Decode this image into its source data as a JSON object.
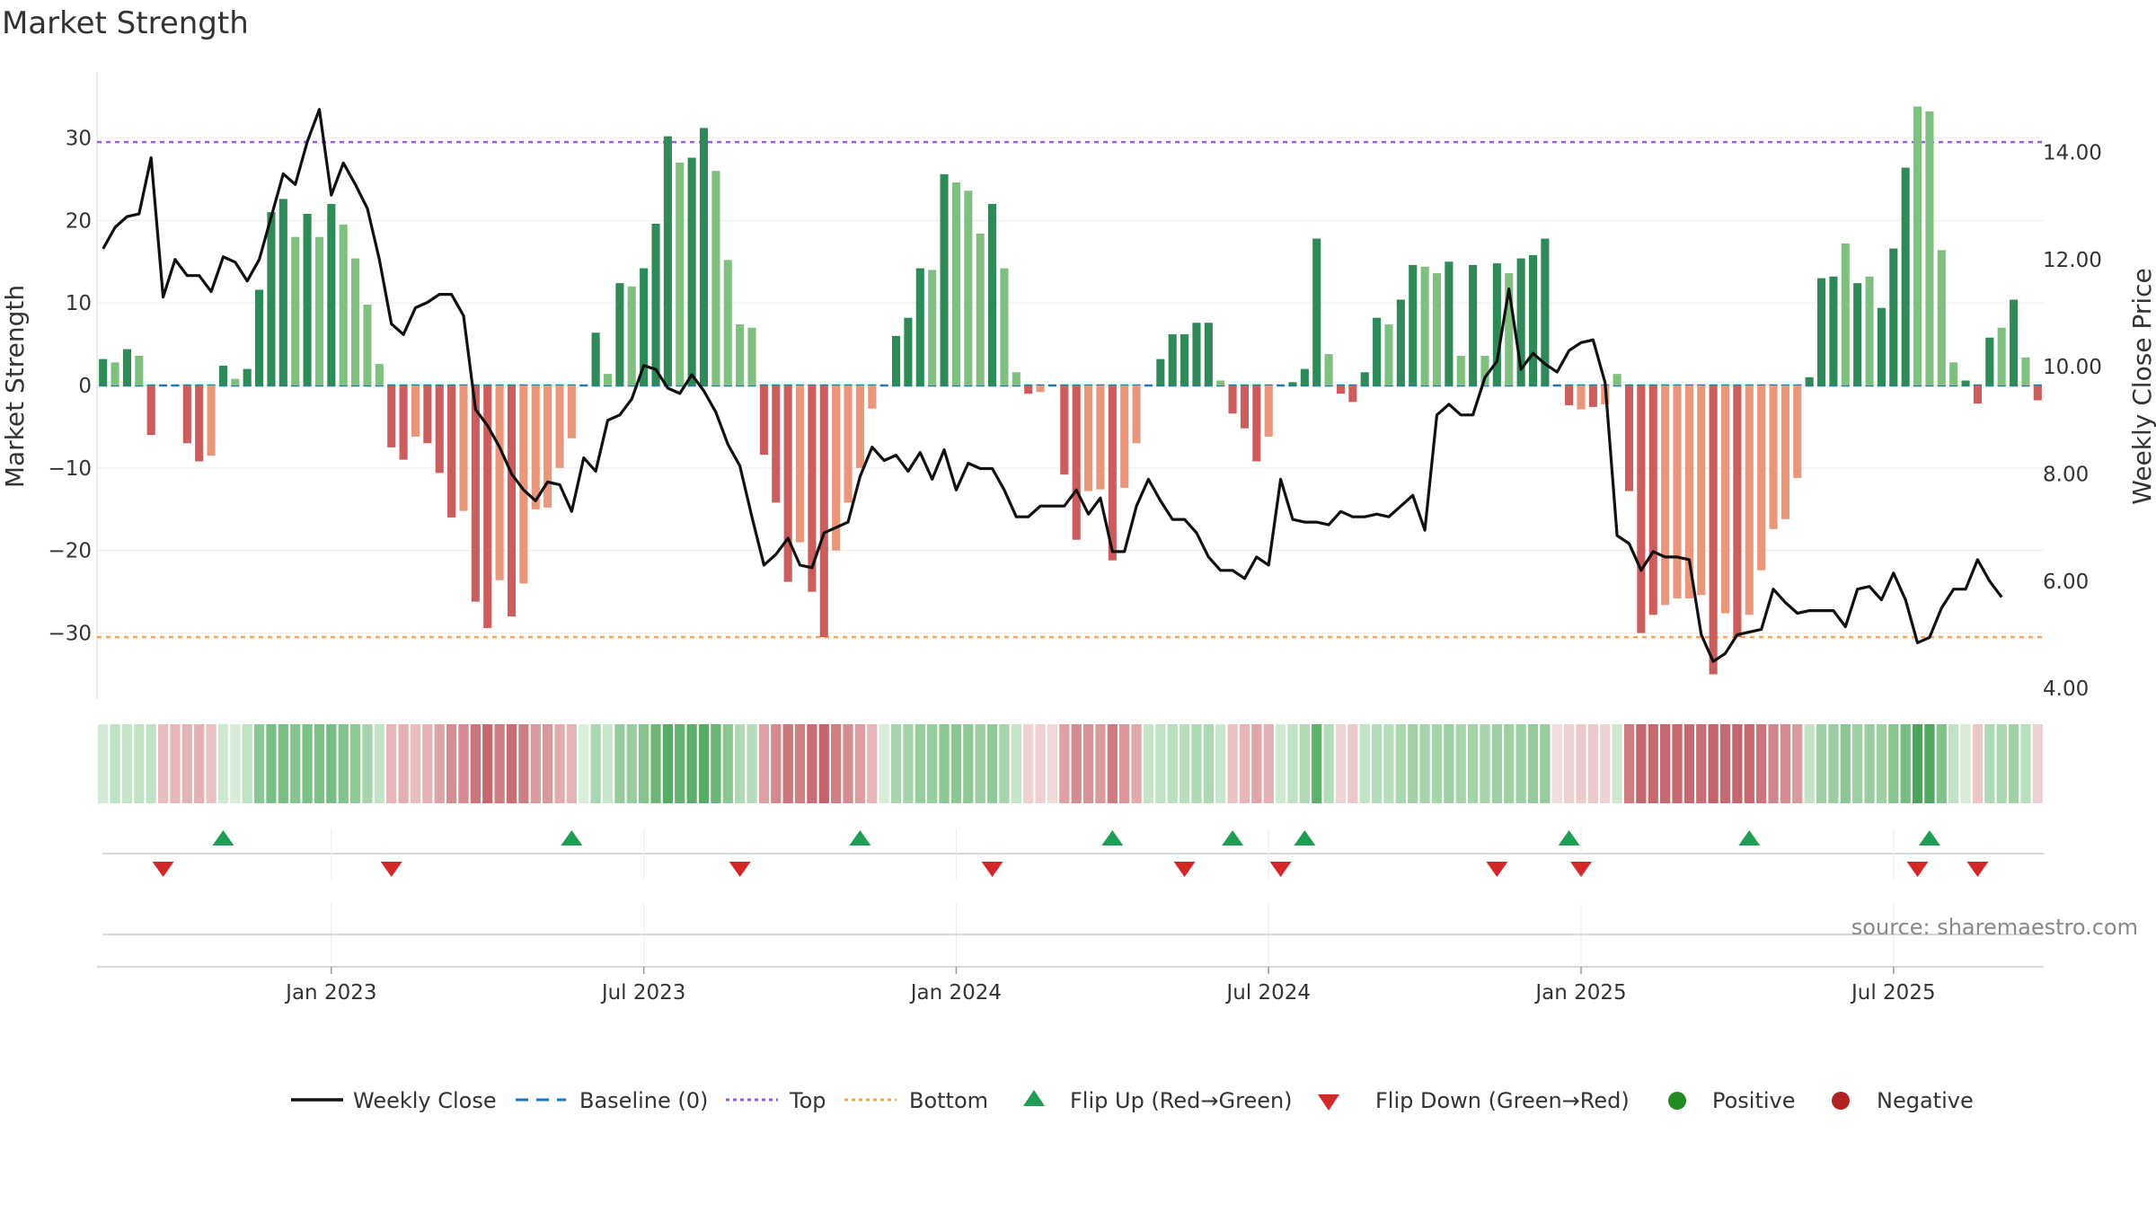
{
  "chart_data": {
    "type": "bar",
    "title": "Market Strength",
    "ylabel": "Market Strength",
    "y2label": "Weekly Close Price",
    "ylim": [
      -38,
      38
    ],
    "y2lim": [
      3.8,
      15.5
    ],
    "y_ticks": [
      -30,
      -20,
      -10,
      0,
      10,
      20,
      30
    ],
    "y_tick_labels": [
      "−30",
      "−20",
      "−10",
      "0",
      "10",
      "20",
      "30"
    ],
    "y2_ticks": [
      4,
      6,
      8,
      10,
      12,
      14
    ],
    "y2_tick_labels": [
      "4.00",
      "6.00",
      "8.00",
      "10.00",
      "12.00",
      "14.00"
    ],
    "top_line": 29.5,
    "bottom_line": -30.5,
    "x_tick_labels": [
      "Jan 2023",
      "Jul 2023",
      "Jan 2024",
      "Jul 2024",
      "Jan 2025",
      "Jul 2025"
    ],
    "x_tick_weeks": [
      19,
      45,
      71,
      97,
      123,
      149
    ],
    "strength": [
      3.2,
      2.8,
      4.4,
      3.6,
      -6.0,
      0,
      0,
      -7.0,
      -9.2,
      -8.5,
      2.4,
      0.8,
      2.0,
      11.6,
      21.0,
      22.6,
      18.0,
      20.8,
      18.0,
      22.0,
      19.5,
      15.4,
      9.8,
      2.6,
      -7.5,
      -9.0,
      -6.2,
      -7.0,
      -10.6,
      -16.0,
      -15.2,
      -26.2,
      -29.4,
      -23.6,
      -28.0,
      -24.0,
      -15.0,
      -14.8,
      -10.0,
      -6.4,
      0,
      6.4,
      1.4,
      12.4,
      12.0,
      14.2,
      19.6,
      30.2,
      27.0,
      27.6,
      31.2,
      26.0,
      15.2,
      7.4,
      7.0,
      -8.4,
      -14.2,
      -23.8,
      -19.0,
      -25.0,
      -30.5,
      -20.0,
      -14.2,
      -10.0,
      -2.8,
      0,
      6.0,
      8.2,
      14.2,
      14.0,
      25.6,
      24.6,
      23.6,
      18.4,
      22.0,
      14.2,
      1.6,
      -1.0,
      -0.8,
      0,
      -10.8,
      -18.7,
      -12.8,
      -12.6,
      -21.2,
      -12.4,
      -7.0,
      0,
      3.2,
      6.2,
      6.2,
      7.6,
      7.6,
      0.6,
      -3.4,
      -5.2,
      -9.2,
      -6.2,
      0,
      0.4,
      2.0,
      17.8,
      3.8,
      -1.0,
      -2.0,
      1.6,
      8.2,
      7.4,
      10.4,
      14.6,
      14.4,
      13.6,
      15.0,
      3.6,
      14.6,
      3.6,
      14.8,
      13.6,
      15.4,
      15.8,
      17.8,
      0,
      -2.4,
      -2.9,
      -2.6,
      -2.3,
      1.4,
      -12.8,
      -30.0,
      -27.8,
      -26.6,
      -25.8,
      -25.8,
      -25.4,
      -35.0,
      -27.6,
      -30.5,
      -27.8,
      -22.4,
      -17.4,
      -16.2,
      -11.2,
      1.0,
      13.0,
      13.2,
      17.2,
      12.4,
      13.2,
      9.4,
      16.6,
      26.4,
      33.8,
      33.2,
      16.4,
      2.8,
      0.6,
      -2.2,
      5.8,
      7.0,
      10.4,
      3.4,
      -1.8
    ],
    "weekly_close": [
      12.2,
      12.6,
      12.8,
      12.85,
      13.9,
      11.3,
      12.0,
      11.7,
      11.7,
      11.4,
      12.05,
      11.95,
      11.6,
      12.0,
      12.8,
      13.6,
      13.4,
      14.2,
      14.8,
      13.2,
      13.8,
      13.4,
      12.95,
      12.0,
      10.8,
      10.6,
      11.1,
      11.2,
      11.35,
      11.35,
      10.95,
      9.2,
      8.9,
      8.5,
      8.0,
      7.7,
      7.5,
      7.85,
      7.8,
      7.3,
      8.3,
      8.05,
      9.0,
      9.1,
      9.4,
      10.02,
      9.95,
      9.6,
      9.5,
      9.85,
      9.55,
      9.15,
      8.55,
      8.15,
      7.2,
      6.3,
      6.5,
      6.8,
      6.3,
      6.25,
      6.9,
      7.0,
      7.1,
      7.95,
      8.5,
      8.25,
      8.35,
      8.05,
      8.4,
      7.9,
      8.45,
      7.7,
      8.2,
      8.1,
      8.1,
      7.7,
      7.2,
      7.2,
      7.4,
      7.4,
      7.4,
      7.7,
      7.25,
      7.55,
      6.55,
      6.55,
      7.4,
      7.9,
      7.5,
      7.15,
      7.15,
      6.9,
      6.45,
      6.2,
      6.2,
      6.05,
      6.45,
      6.3,
      7.9,
      7.15,
      7.1,
      7.1,
      7.05,
      7.3,
      7.2,
      7.2,
      7.25,
      7.2,
      7.4,
      7.6,
      6.95,
      9.1,
      9.3,
      9.1,
      9.1,
      9.8,
      10.1,
      11.45,
      9.95,
      10.25,
      10.05,
      9.9,
      10.3,
      10.45,
      10.5,
      9.7,
      6.85,
      6.7,
      6.2,
      6.55,
      6.45,
      6.45,
      6.4,
      5.0,
      4.5,
      4.65,
      5.0,
      5.05,
      5.1,
      5.85,
      5.6,
      5.4,
      5.45,
      5.45,
      5.45,
      5.15,
      5.85,
      5.9,
      5.65,
      6.15,
      5.65,
      4.85,
      4.95,
      5.5,
      5.85,
      5.85,
      6.4,
      6.0,
      5.7
    ],
    "bar_shade": [
      0,
      1,
      0,
      1,
      0,
      0,
      0,
      0,
      0,
      1,
      0,
      1,
      0,
      0,
      0,
      0,
      1,
      0,
      1,
      0,
      1,
      1,
      1,
      1,
      0,
      0,
      1,
      0,
      0,
      0,
      1,
      0,
      0,
      1,
      0,
      1,
      1,
      1,
      1,
      1,
      0,
      0,
      1,
      0,
      1,
      0,
      0,
      0,
      1,
      0,
      0,
      1,
      1,
      1,
      1,
      0,
      0,
      0,
      1,
      0,
      0,
      1,
      1,
      1,
      1,
      0,
      0,
      0,
      0,
      1,
      0,
      1,
      1,
      1,
      0,
      1,
      1,
      0,
      1,
      0,
      0,
      0,
      1,
      1,
      0,
      1,
      1,
      0,
      0,
      0,
      0,
      0,
      0,
      1,
      0,
      0,
      0,
      1,
      0,
      0,
      0,
      0,
      1,
      0,
      0,
      0,
      0,
      1,
      0,
      0,
      1,
      1,
      0,
      1,
      0,
      1,
      0,
      1,
      0,
      0,
      0,
      0,
      0,
      1,
      0,
      1,
      1,
      0,
      0,
      0,
      1,
      1,
      1,
      1,
      0,
      1,
      0,
      1,
      1,
      1,
      1,
      1,
      0,
      0,
      0,
      1,
      0,
      1,
      0,
      0,
      0,
      1,
      1,
      1,
      1,
      0,
      0,
      0,
      1,
      0,
      1
    ],
    "flip_up_weeks": [
      10,
      39,
      63,
      84,
      94,
      100,
      122,
      137,
      152
    ],
    "flip_down_weeks": [
      5,
      24,
      53,
      74,
      90,
      98,
      116,
      123,
      151,
      156
    ],
    "strip_colors": [
      "#d2ead3",
      "#bde3c2",
      "#c4e5c7",
      "#bfe3c3",
      "#bfe3c3",
      "#e9bcbd",
      "#e7b6b8",
      "#e3b4b6",
      "#e4b1b3",
      "#ebc0c1",
      "#cde8cf",
      "#d6edd8",
      "#bfe4c4",
      "#8ac792",
      "#78c083",
      "#79bf83",
      "#85c48d",
      "#7ac184",
      "#7ec187",
      "#75bd80",
      "#82c48b",
      "#8fc996",
      "#a6d4ab",
      "#c2e4c5",
      "#e6b6b8",
      "#e3b0b2",
      "#e9bcbe",
      "#e5b3b5",
      "#dea3a6",
      "#d68d91",
      "#d58c90",
      "#c97579",
      "#c6696e",
      "#cd7e82",
      "#c86d72",
      "#cd7f83",
      "#db9b9e",
      "#d9999c",
      "#e2acae",
      "#e6b5b7",
      "#d9eed9",
      "#a9d6ae",
      "#c8e6ca",
      "#96cb9d",
      "#99cd9f",
      "#86c48e",
      "#6db678",
      "#58ab65",
      "#65b26f",
      "#5cae68",
      "#56ab63",
      "#6ab574",
      "#8bc792",
      "#b0d9b4",
      "#b5dbb8",
      "#df9fa3",
      "#d38a8e",
      "#cb7479",
      "#d07f83",
      "#c86e73",
      "#c3646a",
      "#d07f83",
      "#d58c90",
      "#dd9ea1",
      "#e8b7b9",
      "#d6ecd7",
      "#a6d5ab",
      "#a2d3a7",
      "#96cc9c",
      "#95cd9b",
      "#8ac792",
      "#8bc792",
      "#8fc996",
      "#9ccea1",
      "#8fc996",
      "#a6d4ab",
      "#c4e5c6",
      "#efd0d1",
      "#efd0d1",
      "#f0d7d8",
      "#dea2a5",
      "#d48c90",
      "#d79498",
      "#d99a9c",
      "#cf7b80",
      "#d9999c",
      "#e1a9ab",
      "#c4e5c6",
      "#c0e3c3",
      "#b9e0bd",
      "#b6dfba",
      "#acd9b1",
      "#acd9b1",
      "#c7e6ca",
      "#ebc2c3",
      "#e6b6b8",
      "#e0a5a8",
      "#e4b1b3",
      "#cfe9d1",
      "#bfe3c3",
      "#afdab3",
      "#5fb06b",
      "#b3ddb7",
      "#f0d3d4",
      "#eccacb",
      "#bfe3c3",
      "#b4dcb7",
      "#b6deba",
      "#a9d7ae",
      "#a1d2a6",
      "#a4d4a9",
      "#a4d4a9",
      "#9ccfa2",
      "#a6d4ab",
      "#a2d3a7",
      "#a6d4ab",
      "#9ccfa2",
      "#9fd0a4",
      "#9ccfa2",
      "#96cb9c",
      "#96cb9c",
      "#f2dcdd",
      "#eed0d1",
      "#eccacb",
      "#eccacb",
      "#eed1d2",
      "#cde8cf",
      "#cf7c81",
      "#c4676c",
      "#c6696e",
      "#c56a6f",
      "#c6696e",
      "#c56a6f",
      "#c96f73",
      "#c3646a",
      "#c56a6f",
      "#c4676c",
      "#c6696e",
      "#cb7479",
      "#d0858a",
      "#d48c90",
      "#d99a9c",
      "#c2e4c5",
      "#9ccfa2",
      "#99cd9f",
      "#8bc792",
      "#9ccfa2",
      "#99cd9f",
      "#9fd0a4",
      "#89c690",
      "#75bd80",
      "#4aa45a",
      "#52a85f",
      "#81c38a",
      "#bfe3c3",
      "#d6ecd7",
      "#ecc6c7",
      "#acd9b1",
      "#a9d7ae",
      "#a1d2a6",
      "#b9e0bd",
      "#efd0d1"
    ],
    "legend": [
      "Weekly Close",
      "Baseline (0)",
      "Top",
      "Bottom",
      "Flip Up (Red→Green)",
      "Flip Down (Green→Red)",
      "Positive",
      "Negative"
    ],
    "source": "source: sharemaestro.com"
  },
  "colors": {
    "pos_dark": "#2e8b57",
    "pos_light": "#7fbf7f",
    "neg_dark": "#cd5c5c",
    "neg_light": "#e9967a",
    "baseline": "#1f77b4",
    "top": "#9a5ed6",
    "bottom": "#f0a35e",
    "close_line": "#111111",
    "flip_up": "#1f9d55",
    "flip_down": "#d62728",
    "legend_pos": "#228b22",
    "legend_neg": "#b22222"
  }
}
